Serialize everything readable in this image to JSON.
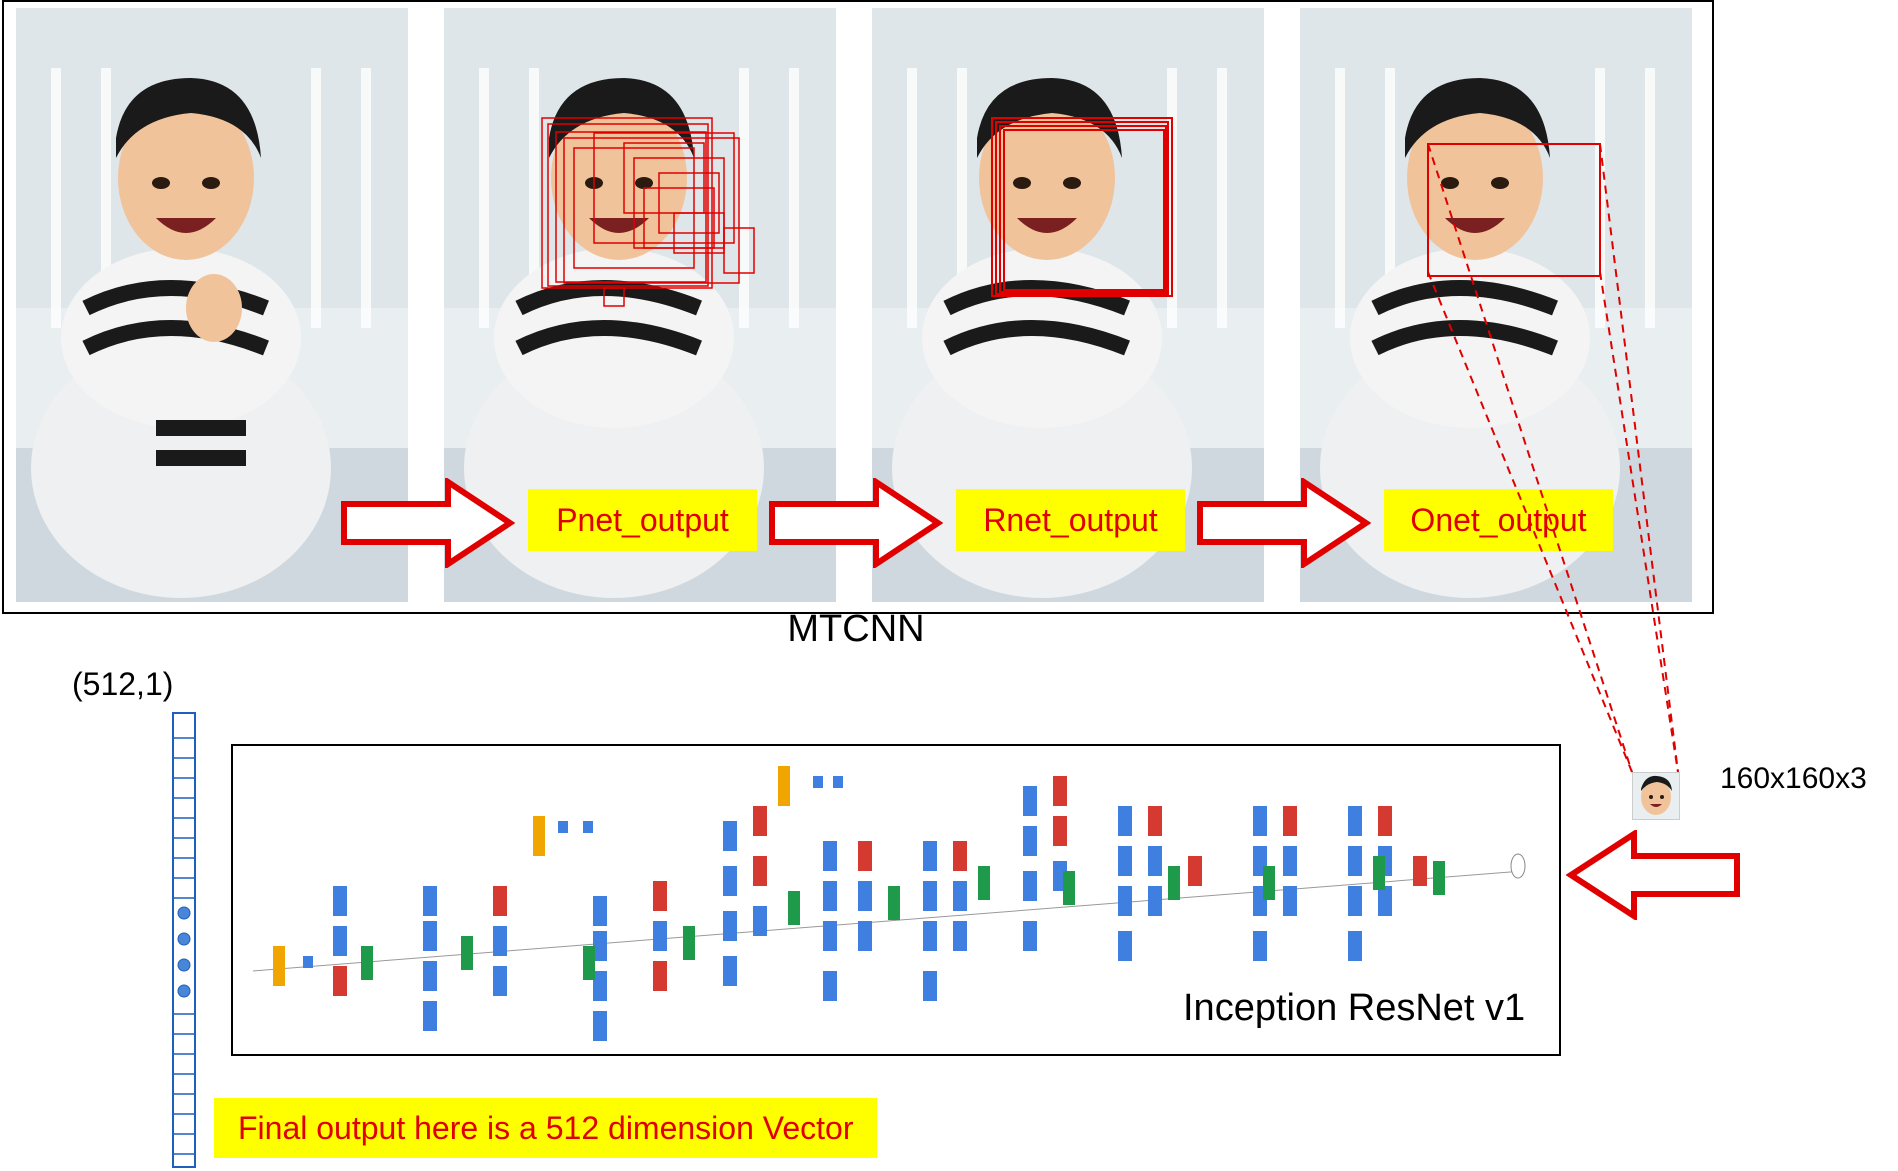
{
  "mtcnn": {
    "title": "MTCNN",
    "stages": [
      {
        "label": "Pnet_output"
      },
      {
        "label": "Rnet_output"
      },
      {
        "label": "Onet_output"
      }
    ]
  },
  "vector": {
    "shape_label": "(512,1)"
  },
  "network": {
    "title": "Inception ResNet v1"
  },
  "input": {
    "size_label": "160x160x3"
  },
  "final": {
    "caption": "Final output here is a 512 dimension Vector"
  },
  "colors": {
    "highlight": "#ffff00",
    "accent_red": "#e00000",
    "conv_blue": "#3f7fe0",
    "pool_red": "#d43a2f",
    "concat_green": "#1f9a4a",
    "softmax_orange": "#f0a500"
  }
}
